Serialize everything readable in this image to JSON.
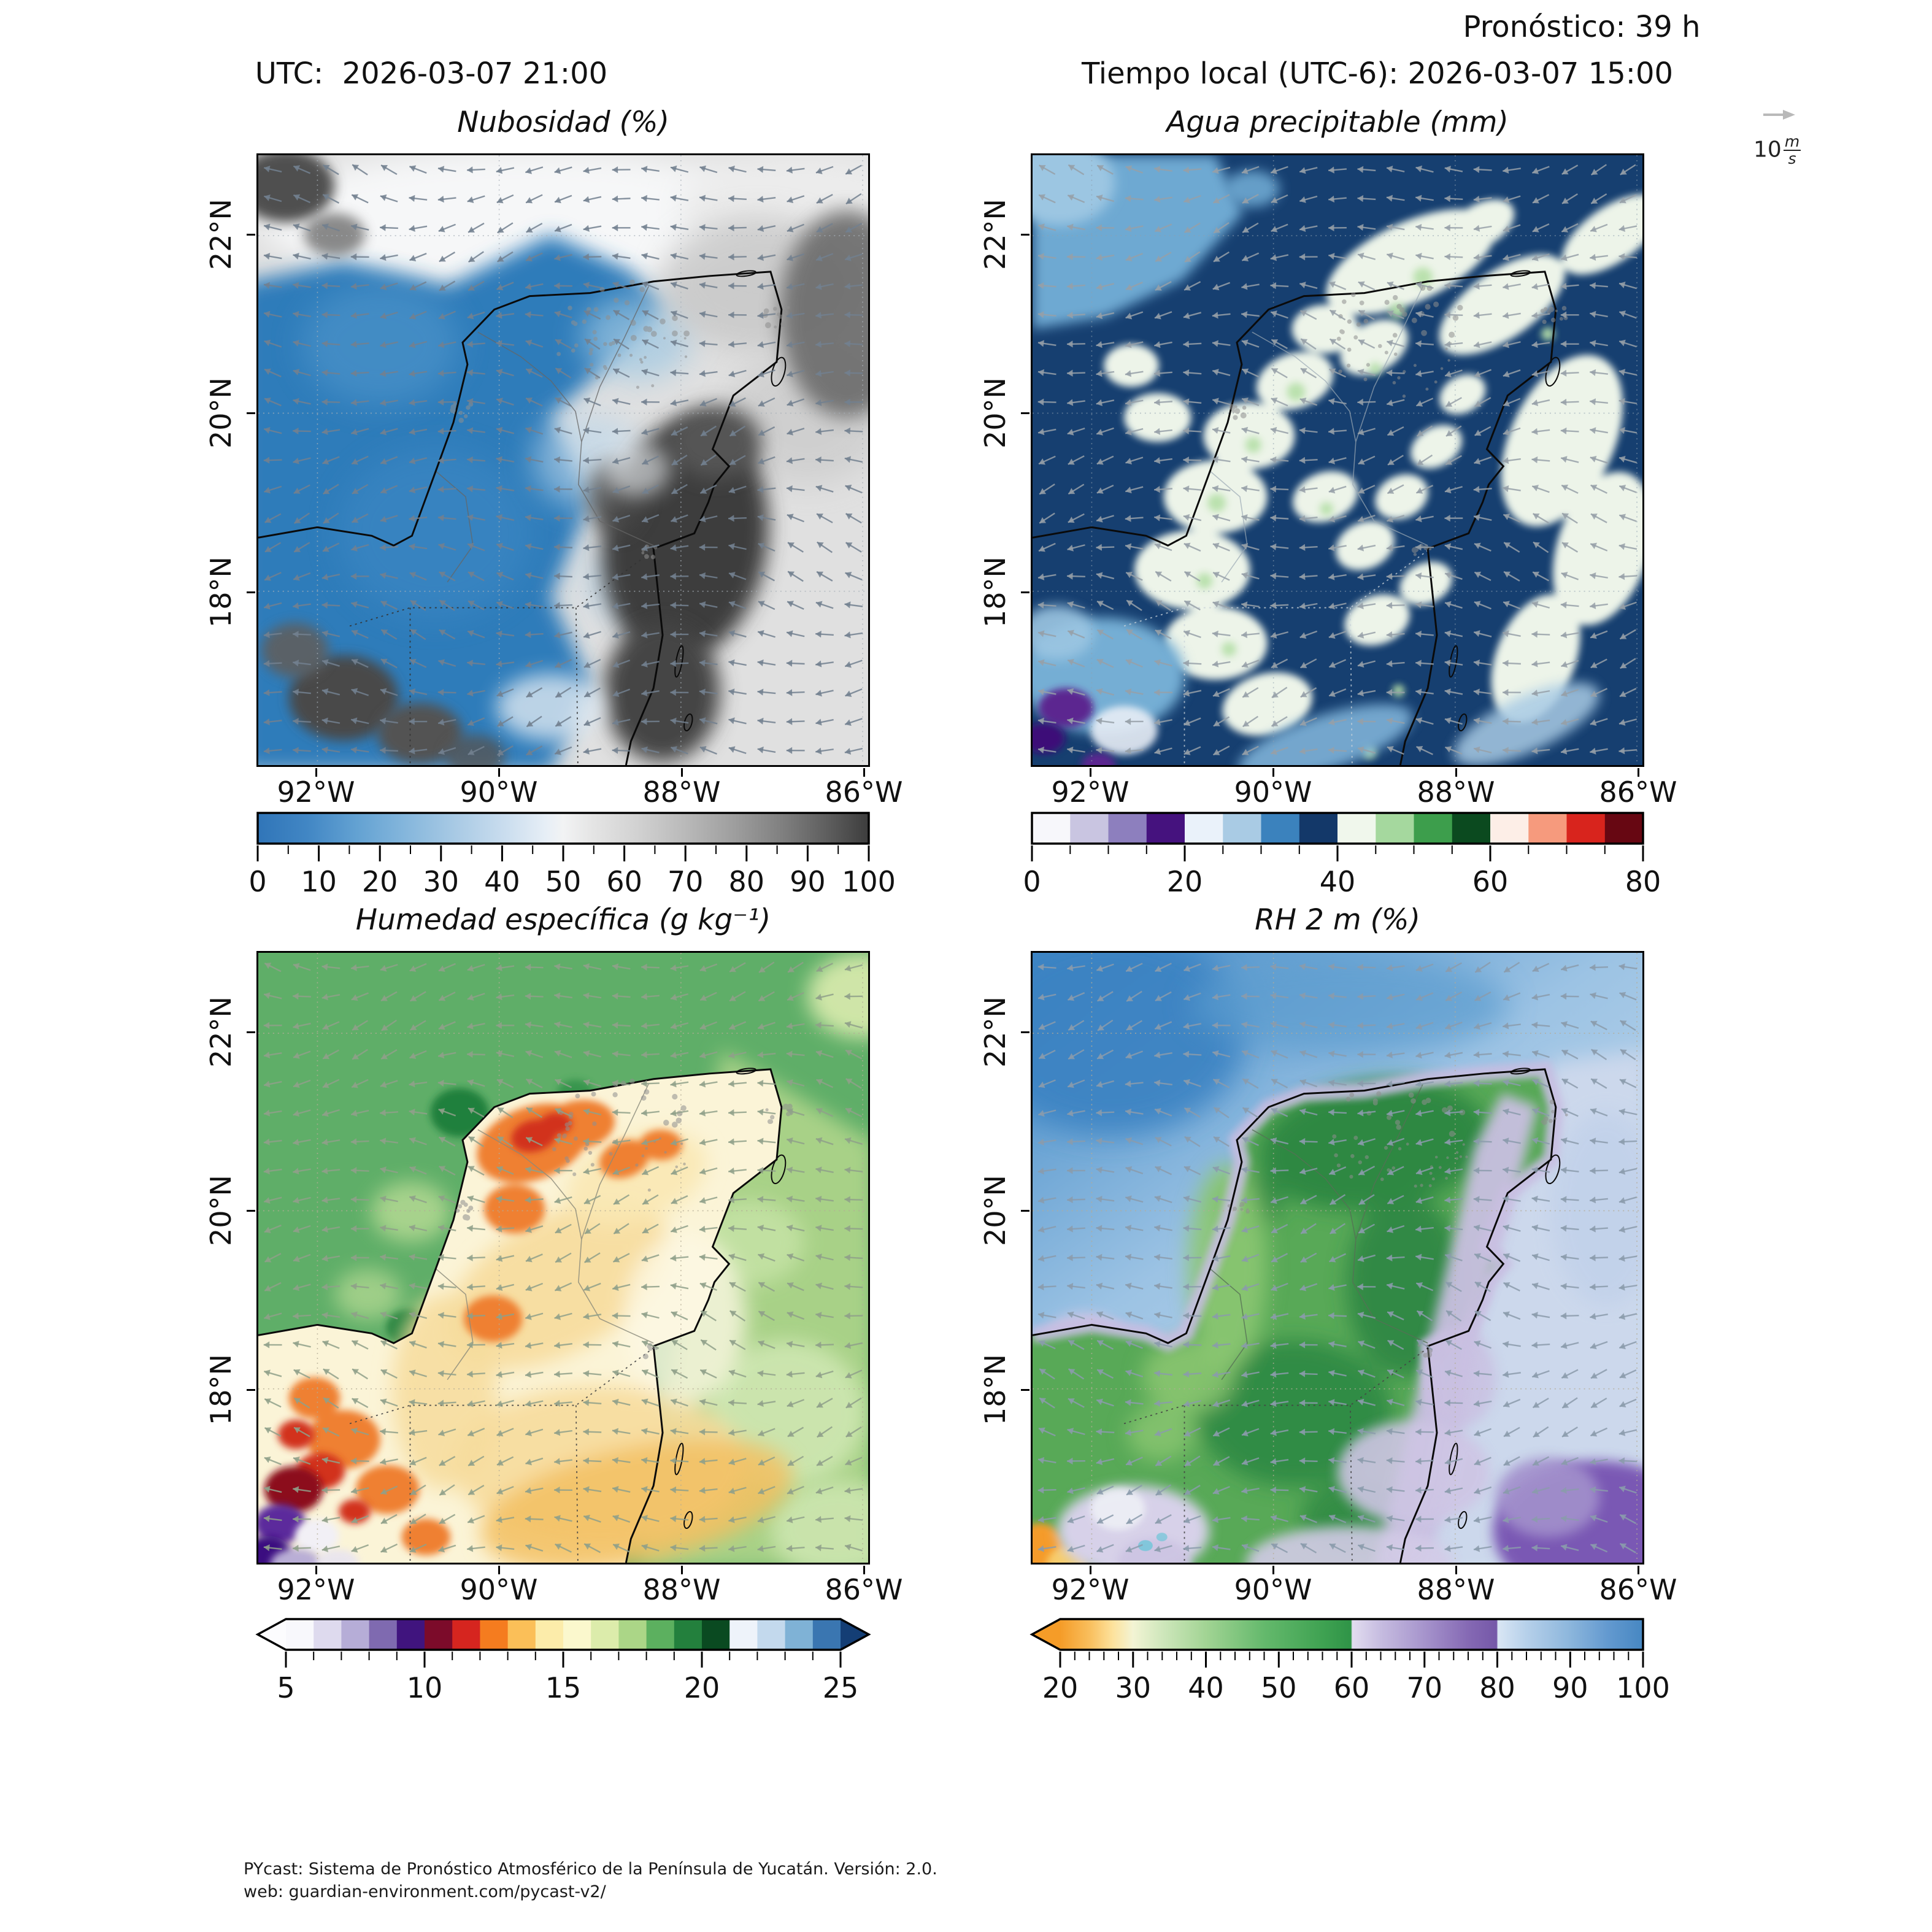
{
  "header": {
    "forecast": "Pronóstico: 39 h",
    "utc": "UTC:  2026-03-07 21:00",
    "local": "Tiempo local (UTC-6): 2026-03-07 15:00"
  },
  "quiver_key": {
    "value": "10",
    "unit_num": "m",
    "unit_den": "s"
  },
  "footer": {
    "line1": "PYcast: Sistema de Pronóstico Atmosférico de la Península de Yucatán. Versión: 2.0.",
    "line2": "web: guardian-environment.com/pycast-v2/"
  },
  "axes": {
    "x_ticks": [
      "92°W",
      "90°W",
      "88°W",
      "86°W"
    ],
    "y_ticks": [
      "22°N",
      "20°N",
      "18°N"
    ]
  },
  "chart_data": [
    {
      "type": "heatmap",
      "title": "Nubosidad (%)",
      "x_ticks": [
        "92°W",
        "90°W",
        "88°W",
        "86°W"
      ],
      "y_ticks": [
        "22°N",
        "20°N",
        "18°N"
      ],
      "overlay": "wind quiver arrows, mostly easterly (pointing west)",
      "field_summary": "Low cloud fraction (blue, 0-20%) over the Gulf of Mexico and northwest Yucatán; mid values (white, 40-60%) in a band across the center; high cloud (dark gray, 80-100%) along the Belize coast, the Caribbean east edge and the southwest highlands",
      "colorbar": {
        "id": "nubosidad",
        "type": "continuous",
        "orientation": "horizontal",
        "range": [
          0,
          100
        ],
        "major_ticks": [
          0,
          10,
          20,
          30,
          40,
          50,
          60,
          70,
          80,
          90,
          100
        ],
        "minor_step": 5,
        "extend": "none",
        "stops": [
          [
            0,
            "#3075b8"
          ],
          [
            0.08,
            "#4186c4"
          ],
          [
            0.16,
            "#62a1d2"
          ],
          [
            0.24,
            "#84b6dc"
          ],
          [
            0.32,
            "#a7c9e4"
          ],
          [
            0.4,
            "#c8dcee"
          ],
          [
            0.47,
            "#e6eef6"
          ],
          [
            0.5,
            "#f2f3f4"
          ],
          [
            0.55,
            "#e4e4e4"
          ],
          [
            0.62,
            "#d2d2d2"
          ],
          [
            0.7,
            "#b9b9b9"
          ],
          [
            0.78,
            "#9e9e9e"
          ],
          [
            0.86,
            "#7f7f7f"
          ],
          [
            0.93,
            "#5f5f5f"
          ],
          [
            1,
            "#3d3d3d"
          ]
        ]
      }
    },
    {
      "type": "heatmap",
      "title": "Agua precipitable (mm)",
      "x_ticks": [
        "92°W",
        "90°W",
        "88°W",
        "86°W"
      ],
      "y_ticks": [
        "22°N",
        "20°N",
        "18°N"
      ],
      "overlay": "wind quiver arrows, mostly easterly (pointing west)",
      "field_summary": "Mostly 35-40 mm (dark navy) with speckled 40-45 mm pockets (white-green) over the peninsula and southwest; 25-30 mm (light blue) patches northwest and southwest; isolated 10-20 mm (purple) spots in the far southwest mountains",
      "colorbar": {
        "id": "agua-precipitable",
        "type": "discrete",
        "orientation": "horizontal",
        "range": [
          0,
          80
        ],
        "major_ticks": [
          0,
          20,
          40,
          60,
          80
        ],
        "minor_step": 5,
        "extend": "none",
        "segments": [
          "#f7f7fb",
          "#c9c5e1",
          "#8d7fbe",
          "#45127e",
          "#eaf2fa",
          "#a9cbe4",
          "#3b82bd",
          "#133869",
          "#f0f7ec",
          "#a5d89e",
          "#3d9e4c",
          "#0b4a1f",
          "#fdeee7",
          "#f69a7d",
          "#d8241d",
          "#670712"
        ]
      }
    },
    {
      "type": "heatmap",
      "title": "Humedad específica (g kg⁻¹)",
      "x_ticks": [
        "92°W",
        "90°W",
        "88°W",
        "86°W"
      ],
      "y_ticks": [
        "22°N",
        "20°N",
        "18°N"
      ],
      "overlay": "wind quiver arrows, mostly easterly (pointing west)",
      "field_summary": "Sea around 17-19 g/kg (greens), lighter greens over the Caribbean; land 14-15 g/kg (cream) with drier 12-13 g/kg patches (orange) in the northwest and 11 g/kg spots (red); very dry 5-10 g/kg (purple/dark red) over the southwest mountains",
      "colorbar": {
        "id": "humedad-especifica",
        "type": "discrete",
        "orientation": "horizontal",
        "range": [
          5,
          25
        ],
        "major_ticks": [
          5,
          10,
          15,
          20,
          25
        ],
        "minor_step": 1,
        "extend": "both",
        "arrow_left": "#fcfcfe",
        "arrow_right": "#143e75",
        "segments": [
          "#f8f8fc",
          "#dedaee",
          "#b6add7",
          "#7f6ab0",
          "#40147e",
          "#7c0b2a",
          "#d6251f",
          "#f57c1f",
          "#fbbf58",
          "#fcecaa",
          "#fbf8cd",
          "#dcecab",
          "#abd687",
          "#5cb05f",
          "#23803d",
          "#0a4a21",
          "#eef3fa",
          "#c3d9ed",
          "#7fb2d6",
          "#3a76b1"
        ]
      }
    },
    {
      "type": "heatmap",
      "title": "RH 2 m (%)",
      "x_ticks": [
        "92°W",
        "90°W",
        "88°W",
        "86°W"
      ],
      "y_ticks": [
        "22°N",
        "20°N",
        "18°N"
      ],
      "overlay": "wind quiver arrows, mostly easterly (pointing west)",
      "field_summary": "Gulf waters 85-100% (blues), Caribbean 80-90% (pale blue); peninsula interior 40-55% (greens) with a 60-80% lavender-purple fringe along the coasts and southeast; 65-75% purple blob offshore southeast; ~20-30% orange corner in the far southwest",
      "colorbar": {
        "id": "rh-2m",
        "type": "continuous",
        "orientation": "horizontal",
        "range": [
          20,
          100
        ],
        "major_ticks": [
          20,
          30,
          40,
          50,
          60,
          70,
          80,
          90,
          100
        ],
        "minor_step": 2,
        "extend": "left",
        "arrow_left": "#f59c28",
        "stops": [
          [
            0,
            "#f59c28"
          ],
          [
            0.05,
            "#f9be5c"
          ],
          [
            0.09,
            "#fde29c"
          ],
          [
            0.125,
            "#f3f4d4"
          ],
          [
            0.175,
            "#cfe7bc"
          ],
          [
            0.25,
            "#a2d494"
          ],
          [
            0.35,
            "#64b96c"
          ],
          [
            0.45,
            "#3fa252"
          ],
          [
            0.499,
            "#2f9447"
          ],
          [
            0.501,
            "#e2ddf0"
          ],
          [
            0.55,
            "#c6bce0"
          ],
          [
            0.625,
            "#a694cc"
          ],
          [
            0.7,
            "#8569b4"
          ],
          [
            0.749,
            "#7558a8"
          ],
          [
            0.751,
            "#d9e6f4"
          ],
          [
            0.8,
            "#b6d0ea"
          ],
          [
            0.875,
            "#8cb6dc"
          ],
          [
            0.9375,
            "#649ad0"
          ],
          [
            1,
            "#4687c2"
          ]
        ]
      }
    }
  ]
}
